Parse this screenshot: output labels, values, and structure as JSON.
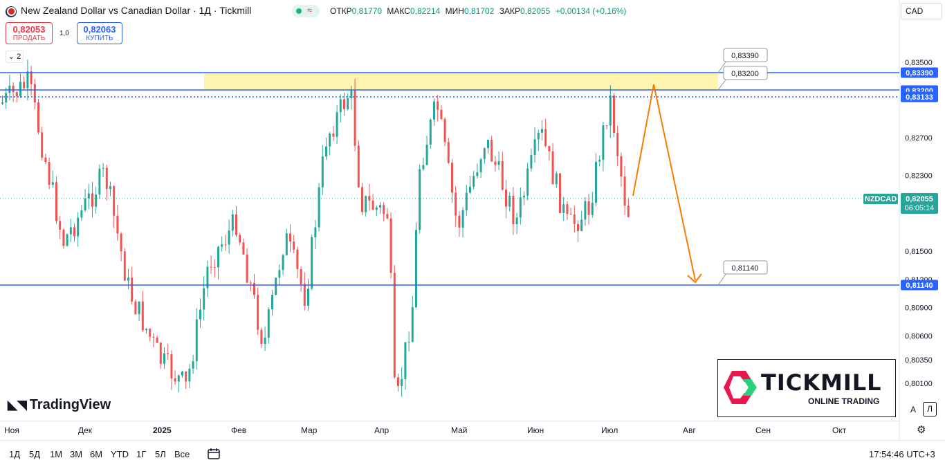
{
  "header": {
    "title": "New Zealand Dollar vs Canadian Dollar · 1Д · Tickmill",
    "status_icon": "≈",
    "ohlc": [
      {
        "k": "ОТКР",
        "v": "0,81770"
      },
      {
        "k": "МАКС",
        "v": "0,82214"
      },
      {
        "k": "МИН",
        "v": "0,81702"
      },
      {
        "k": "ЗАКР",
        "v": "0,82055"
      },
      {
        "k": "",
        "v": "+0,00134 (+0,16%)"
      }
    ],
    "currency": "CAD"
  },
  "trade": {
    "sell_price": "0,82053",
    "sell_label": "ПРОДАТЬ",
    "spread": "1,0",
    "buy_price": "0,82063",
    "buy_label": "КУПИТЬ"
  },
  "indicator_collapse": "2",
  "price_axis": {
    "labels": [
      "0,83500",
      "0,82700",
      "0,82300",
      "0,81500",
      "0,81200",
      "0,80900",
      "0,80600",
      "0,80350",
      "0,80100"
    ],
    "levels": [
      {
        "value": "0,83390",
        "color": "#2962ff"
      },
      {
        "value": "0,83200",
        "color": "#2962ff"
      },
      {
        "value": "0,83133",
        "color": "#2962ff"
      },
      {
        "value": "0,81140",
        "color": "#2962ff"
      }
    ],
    "current_symbol": "NZDCAD",
    "current_price": "0,82055",
    "countdown": "06:05:14"
  },
  "callouts": [
    "0,83390",
    "0,83200",
    "0,81140"
  ],
  "time_axis": [
    "Ноя",
    "Дек",
    "2025",
    "Фев",
    "Мар",
    "Апр",
    "Май",
    "Июн",
    "Июл",
    "Авг",
    "Сен",
    "Окт"
  ],
  "branding": {
    "tradingview": "TradingView",
    "tickmill": "TICKMILL",
    "tickmill_sub": "ONLINE TRADING"
  },
  "scale_buttons": {
    "auto": "A",
    "log": "Л"
  },
  "ranges": [
    "1Д",
    "5Д",
    "1М",
    "3М",
    "6М",
    "YTD",
    "1Г",
    "5Л",
    "Все"
  ],
  "clock": "17:54:46 UTC+3",
  "colors": {
    "up": "#26a69a",
    "down": "#ef5350",
    "zone": "#fff3b0",
    "arrow": "#f57c00"
  }
}
